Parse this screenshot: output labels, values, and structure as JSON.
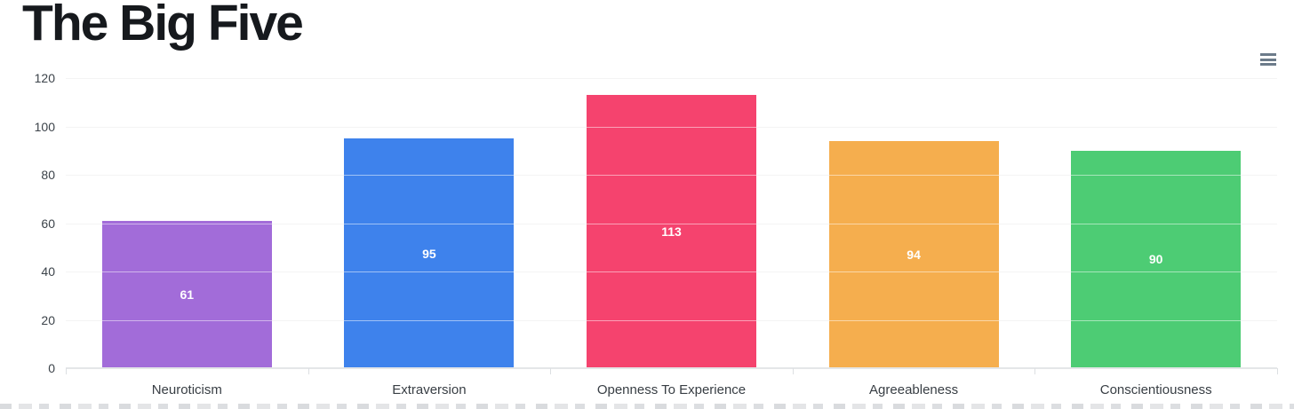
{
  "page": {
    "title": "The Big Five"
  },
  "toolbar": {
    "menu_icon": "hamburger-menu"
  },
  "chart_data": {
    "type": "bar",
    "title": "The Big Five",
    "categories": [
      "Neuroticism",
      "Extraversion",
      "Openness To Experience",
      "Agreeableness",
      "Conscientiousness"
    ],
    "values": [
      61,
      95,
      113,
      94,
      90
    ],
    "data_labels": [
      "61",
      "95",
      "113",
      "94",
      "90"
    ],
    "colors": [
      "#a26cd9",
      "#3e82ec",
      "#f5436e",
      "#f5ae4e",
      "#4dcc74"
    ],
    "xlabel": "",
    "ylabel": "",
    "ylim": [
      0,
      120
    ],
    "yticks": [
      0,
      20,
      40,
      60,
      80,
      100,
      120
    ],
    "grid": "on",
    "legend": "none",
    "bar_label_color": "#ffffff",
    "gridline_color": "#e9e9e9"
  }
}
